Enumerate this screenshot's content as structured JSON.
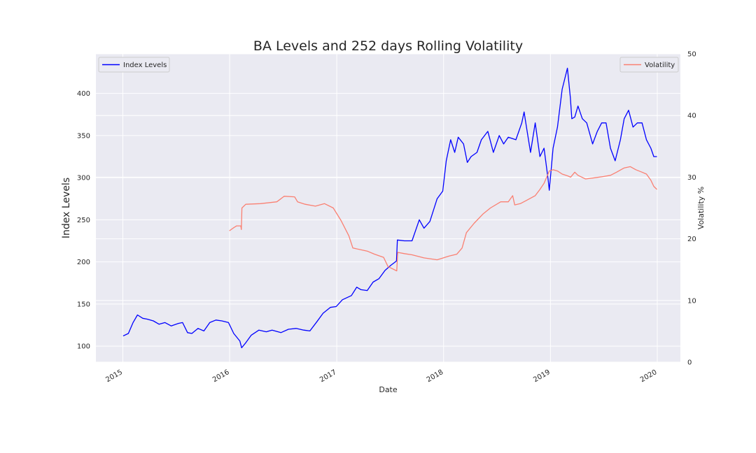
{
  "chart_data": {
    "type": "line",
    "title": "BA Levels and 252 days Rolling Volatility",
    "xlabel": "Date",
    "ylabel_left": "Index Levels",
    "ylabel_right": "Volatility %",
    "x_ticks": [
      "2015",
      "2016",
      "2017",
      "2018",
      "2019",
      "2020"
    ],
    "y_left_ticks": [
      "100",
      "150",
      "200",
      "250",
      "300",
      "350",
      "400"
    ],
    "y_right_ticks": [
      "0",
      "10",
      "20",
      "30",
      "40",
      "50"
    ],
    "xlim": [
      "2014-10-01",
      "2020-03-20"
    ],
    "ylim_left": [
      81,
      447
    ],
    "ylim_right": [
      0,
      50
    ],
    "grid": true,
    "legends": [
      {
        "label": "Index Levels",
        "placement": "upper-left"
      },
      {
        "label": "Volatility",
        "placement": "upper-right"
      }
    ],
    "series": [
      {
        "name": "Index Levels",
        "axis": "left",
        "color": "#0000ff",
        "points": [
          [
            "2015-01-02",
            112
          ],
          [
            "2015-01-20",
            115
          ],
          [
            "2015-02-05",
            128
          ],
          [
            "2015-02-20",
            137
          ],
          [
            "2015-03-10",
            133
          ],
          [
            "2015-03-25",
            132
          ],
          [
            "2015-04-15",
            130
          ],
          [
            "2015-05-05",
            126
          ],
          [
            "2015-05-25",
            128
          ],
          [
            "2015-06-15",
            124
          ],
          [
            "2015-07-10",
            127
          ],
          [
            "2015-07-24",
            128
          ],
          [
            "2015-08-10",
            116
          ],
          [
            "2015-08-25",
            115
          ],
          [
            "2015-09-15",
            121
          ],
          [
            "2015-10-05",
            118
          ],
          [
            "2015-10-25",
            128
          ],
          [
            "2015-11-15",
            131
          ],
          [
            "2015-12-05",
            130
          ],
          [
            "2015-12-28",
            128
          ],
          [
            "2016-01-15",
            115
          ],
          [
            "2016-02-05",
            106
          ],
          [
            "2016-02-11",
            98
          ],
          [
            "2016-02-25",
            104
          ],
          [
            "2016-03-15",
            113
          ],
          [
            "2016-04-10",
            119
          ],
          [
            "2016-05-05",
            117
          ],
          [
            "2016-05-25",
            119
          ],
          [
            "2016-06-24",
            116
          ],
          [
            "2016-07-20",
            120
          ],
          [
            "2016-08-15",
            121
          ],
          [
            "2016-09-10",
            119
          ],
          [
            "2016-10-01",
            118
          ],
          [
            "2016-10-25",
            129
          ],
          [
            "2016-11-15",
            139
          ],
          [
            "2016-12-10",
            146
          ],
          [
            "2016-12-30",
            147
          ],
          [
            "2017-01-20",
            155
          ],
          [
            "2017-02-20",
            160
          ],
          [
            "2017-03-10",
            170
          ],
          [
            "2017-03-25",
            167
          ],
          [
            "2017-04-15",
            166
          ],
          [
            "2017-05-05",
            176
          ],
          [
            "2017-05-25",
            180
          ],
          [
            "2017-06-15",
            190
          ],
          [
            "2017-07-05",
            196
          ],
          [
            "2017-07-24",
            201
          ],
          [
            "2017-07-27",
            226
          ],
          [
            "2017-08-20",
            225
          ],
          [
            "2017-09-15",
            225
          ],
          [
            "2017-10-10",
            250
          ],
          [
            "2017-10-26",
            240
          ],
          [
            "2017-11-15",
            248
          ],
          [
            "2017-12-10",
            275
          ],
          [
            "2017-12-29",
            284
          ],
          [
            "2018-01-10",
            320
          ],
          [
            "2018-01-25",
            345
          ],
          [
            "2018-02-08",
            330
          ],
          [
            "2018-02-20",
            348
          ],
          [
            "2018-03-10",
            340
          ],
          [
            "2018-03-23",
            318
          ],
          [
            "2018-04-05",
            325
          ],
          [
            "2018-04-25",
            330
          ],
          [
            "2018-05-10",
            345
          ],
          [
            "2018-06-01",
            355
          ],
          [
            "2018-06-20",
            330
          ],
          [
            "2018-07-10",
            350
          ],
          [
            "2018-07-25",
            340
          ],
          [
            "2018-08-10",
            348
          ],
          [
            "2018-09-05",
            345
          ],
          [
            "2018-09-25",
            365
          ],
          [
            "2018-10-03",
            378
          ],
          [
            "2018-10-11",
            360
          ],
          [
            "2018-10-25",
            330
          ],
          [
            "2018-11-10",
            365
          ],
          [
            "2018-11-26",
            325
          ],
          [
            "2018-12-10",
            335
          ],
          [
            "2018-12-24",
            298
          ],
          [
            "2018-12-28",
            285
          ],
          [
            "2019-01-10",
            335
          ],
          [
            "2019-01-25",
            360
          ],
          [
            "2019-02-10",
            405
          ],
          [
            "2019-02-28",
            430
          ],
          [
            "2019-03-10",
            395
          ],
          [
            "2019-03-15",
            370
          ],
          [
            "2019-03-25",
            372
          ],
          [
            "2019-04-05",
            385
          ],
          [
            "2019-04-20",
            370
          ],
          [
            "2019-05-05",
            365
          ],
          [
            "2019-05-25",
            340
          ],
          [
            "2019-06-10",
            355
          ],
          [
            "2019-06-25",
            365
          ],
          [
            "2019-07-10",
            365
          ],
          [
            "2019-07-25",
            335
          ],
          [
            "2019-08-10",
            320
          ],
          [
            "2019-08-28",
            345
          ],
          [
            "2019-09-10",
            370
          ],
          [
            "2019-09-25",
            380
          ],
          [
            "2019-10-10",
            360
          ],
          [
            "2019-10-25",
            365
          ],
          [
            "2019-11-10",
            365
          ],
          [
            "2019-11-25",
            345
          ],
          [
            "2019-12-10",
            335
          ],
          [
            "2019-12-20",
            325
          ],
          [
            "2019-12-31",
            325
          ]
        ]
      },
      {
        "name": "Volatility",
        "axis": "right",
        "color": "#fa8072",
        "points": [
          [
            "2015-12-31",
            21.3
          ],
          [
            "2016-01-15",
            21.8
          ],
          [
            "2016-01-25",
            22.1
          ],
          [
            "2016-02-08",
            22.1
          ],
          [
            "2016-02-10",
            21.5
          ],
          [
            "2016-02-12",
            25.0
          ],
          [
            "2016-02-25",
            25.6
          ],
          [
            "2016-04-15",
            25.7
          ],
          [
            "2016-06-10",
            26.0
          ],
          [
            "2016-06-24",
            26.5
          ],
          [
            "2016-07-05",
            26.9
          ],
          [
            "2016-08-10",
            26.8
          ],
          [
            "2016-08-20",
            26.0
          ],
          [
            "2016-09-15",
            25.6
          ],
          [
            "2016-10-20",
            25.3
          ],
          [
            "2016-11-20",
            25.7
          ],
          [
            "2016-12-20",
            25.0
          ],
          [
            "2017-01-15",
            23.0
          ],
          [
            "2017-02-11",
            20.5
          ],
          [
            "2017-02-25",
            18.5
          ],
          [
            "2017-04-15",
            18.0
          ],
          [
            "2017-05-10",
            17.5
          ],
          [
            "2017-06-10",
            17.0
          ],
          [
            "2017-06-25",
            15.5
          ],
          [
            "2017-07-25",
            14.8
          ],
          [
            "2017-07-28",
            17.8
          ],
          [
            "2017-08-20",
            17.6
          ],
          [
            "2017-09-15",
            17.4
          ],
          [
            "2017-10-26",
            16.9
          ],
          [
            "2017-12-10",
            16.6
          ],
          [
            "2018-01-20",
            17.2
          ],
          [
            "2018-02-15",
            17.5
          ],
          [
            "2018-03-05",
            18.5
          ],
          [
            "2018-03-20",
            21.0
          ],
          [
            "2018-04-15",
            22.5
          ],
          [
            "2018-05-15",
            24.0
          ],
          [
            "2018-06-10",
            25.0
          ],
          [
            "2018-07-15",
            26.0
          ],
          [
            "2018-08-10",
            26.0
          ],
          [
            "2018-08-25",
            27.0
          ],
          [
            "2018-09-01",
            25.5
          ],
          [
            "2018-09-20",
            25.7
          ],
          [
            "2018-10-10",
            26.2
          ],
          [
            "2018-11-10",
            27.0
          ],
          [
            "2018-11-26",
            28.0
          ],
          [
            "2018-12-10",
            29.0
          ],
          [
            "2018-12-28",
            31.0
          ],
          [
            "2019-01-10",
            31.2
          ],
          [
            "2019-01-25",
            31.0
          ],
          [
            "2019-02-10",
            30.5
          ],
          [
            "2019-03-01",
            30.2
          ],
          [
            "2019-03-11",
            30.0
          ],
          [
            "2019-03-25",
            30.8
          ],
          [
            "2019-04-05",
            30.3
          ],
          [
            "2019-05-01",
            29.7
          ],
          [
            "2019-06-01",
            29.9
          ],
          [
            "2019-07-01",
            30.1
          ],
          [
            "2019-07-25",
            30.3
          ],
          [
            "2019-08-15",
            30.8
          ],
          [
            "2019-09-10",
            31.5
          ],
          [
            "2019-10-01",
            31.7
          ],
          [
            "2019-10-20",
            31.2
          ],
          [
            "2019-11-10",
            30.8
          ],
          [
            "2019-11-25",
            30.5
          ],
          [
            "2019-12-10",
            29.5
          ],
          [
            "2019-12-20",
            28.5
          ],
          [
            "2019-12-31",
            28.0
          ]
        ]
      }
    ]
  }
}
